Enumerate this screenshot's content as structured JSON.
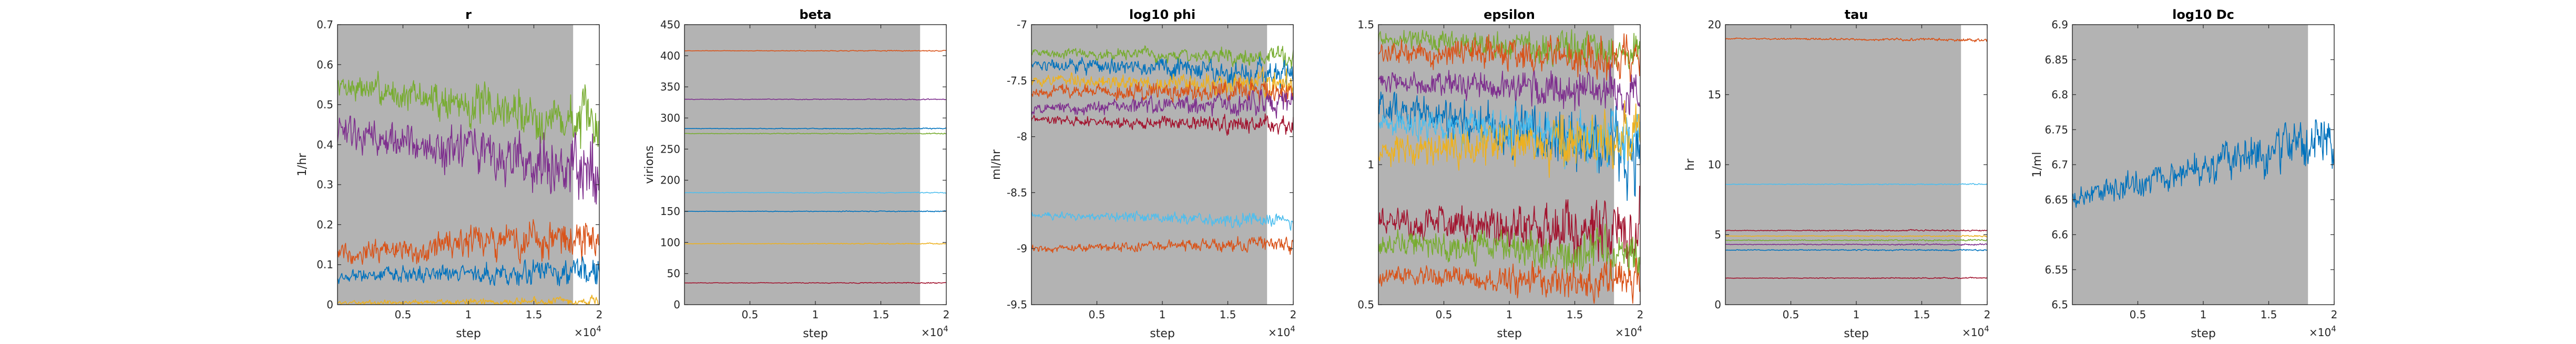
{
  "figure": {
    "burn_in_color": "#b3b3b3",
    "colors": [
      "#0072BD",
      "#D95319",
      "#EDB120",
      "#7E2F8E",
      "#77AC30",
      "#4DBEEE",
      "#A2142F"
    ]
  },
  "chart_data": [
    {
      "type": "line",
      "title": "r",
      "xlabel": "step",
      "ylabel": "1/hr",
      "xlim": [
        0,
        20000
      ],
      "ylim": [
        0,
        0.7
      ],
      "xticks": [
        "0.5",
        "1",
        "1.5",
        "2"
      ],
      "xtick_values": [
        5000,
        10000,
        15000,
        20000
      ],
      "yticks": [
        "0",
        "0.1",
        "0.2",
        "0.3",
        "0.4",
        "0.5",
        "0.6",
        "0.7"
      ],
      "ytick_values": [
        0,
        0.1,
        0.2,
        0.3,
        0.4,
        0.5,
        0.6,
        0.7
      ],
      "x_exponent": "×10",
      "x_exponent_power": "4",
      "burn_in_end": 18000,
      "series": [
        {
          "color": "#77AC30",
          "start": 0.55,
          "end": 0.45,
          "noise": 0.05
        },
        {
          "color": "#7E2F8E",
          "start": 0.43,
          "end": 0.33,
          "noise": 0.06
        },
        {
          "color": "#D95319",
          "start": 0.13,
          "end": 0.17,
          "noise": 0.04
        },
        {
          "color": "#0072BD",
          "start": 0.07,
          "end": 0.08,
          "noise": 0.025
        },
        {
          "color": "#EDB120",
          "start": 0.005,
          "end": 0.01,
          "noise": 0.008
        }
      ]
    },
    {
      "type": "line",
      "title": "beta",
      "xlabel": "step",
      "ylabel": "virions",
      "xlim": [
        0,
        20000
      ],
      "ylim": [
        0,
        450
      ],
      "xticks": [
        "0.5",
        "1",
        "1.5",
        "2"
      ],
      "xtick_values": [
        5000,
        10000,
        15000,
        20000
      ],
      "yticks": [
        "0",
        "50",
        "100",
        "150",
        "200",
        "250",
        "300",
        "350",
        "400",
        "450"
      ],
      "ytick_values": [
        0,
        50,
        100,
        150,
        200,
        250,
        300,
        350,
        400,
        450
      ],
      "x_exponent": "×10",
      "x_exponent_power": "4",
      "burn_in_end": 18000,
      "series": [
        {
          "color": "#D95319",
          "start": 408,
          "end": 408,
          "noise": 0.6
        },
        {
          "color": "#7E2F8E",
          "start": 330,
          "end": 330,
          "noise": 0.6
        },
        {
          "color": "#0072BD",
          "start": 283,
          "end": 283,
          "noise": 0.6
        },
        {
          "color": "#77AC30",
          "start": 275,
          "end": 275,
          "noise": 0.6
        },
        {
          "color": "#4DBEEE",
          "start": 180,
          "end": 180,
          "noise": 0.6
        },
        {
          "color": "#0072BD",
          "start": 150,
          "end": 150,
          "noise": 0.6
        },
        {
          "color": "#EDB120",
          "start": 98,
          "end": 98,
          "noise": 0.6
        },
        {
          "color": "#A2142F",
          "start": 35,
          "end": 35,
          "noise": 0.6
        }
      ]
    },
    {
      "type": "line",
      "title": "log10 phi",
      "xlabel": "step",
      "ylabel": "ml/hr",
      "xlim": [
        0,
        20000
      ],
      "ylim": [
        -9.5,
        -7
      ],
      "xticks": [
        "0.5",
        "1",
        "1.5",
        "2"
      ],
      "xtick_values": [
        5000,
        10000,
        15000,
        20000
      ],
      "yticks": [
        "-9.5",
        "-9",
        "-8.5",
        "-8",
        "-7.5",
        "-7"
      ],
      "ytick_values": [
        -9.5,
        -9,
        -8.5,
        -8,
        -7.5,
        -7
      ],
      "x_exponent": "×10",
      "x_exponent_power": "4",
      "burn_in_end": 18000,
      "series": [
        {
          "color": "#77AC30",
          "start": -7.25,
          "end": -7.3,
          "noise": 0.06
        },
        {
          "color": "#0072BD",
          "start": -7.35,
          "end": -7.45,
          "noise": 0.08
        },
        {
          "color": "#EDB120",
          "start": -7.5,
          "end": -7.55,
          "noise": 0.08
        },
        {
          "color": "#D95319",
          "start": -7.6,
          "end": -7.6,
          "noise": 0.08
        },
        {
          "color": "#7E2F8E",
          "start": -7.75,
          "end": -7.7,
          "noise": 0.08
        },
        {
          "color": "#A2142F",
          "start": -7.85,
          "end": -7.9,
          "noise": 0.06
        },
        {
          "color": "#4DBEEE",
          "start": -8.7,
          "end": -8.75,
          "noise": 0.05
        },
        {
          "color": "#D95319",
          "start": -9.0,
          "end": -8.95,
          "noise": 0.05
        }
      ]
    },
    {
      "type": "line",
      "title": "epsilon",
      "xlabel": "step",
      "ylabel": "",
      "xlim": [
        0,
        20000
      ],
      "ylim": [
        0.5,
        1.5
      ],
      "xticks": [
        "0.5",
        "1",
        "1.5",
        "2"
      ],
      "xtick_values": [
        5000,
        10000,
        15000,
        20000
      ],
      "yticks": [
        "0.5",
        "1",
        "1.5"
      ],
      "ytick_values": [
        0.5,
        1,
        1.5
      ],
      "x_exponent": "×10",
      "x_exponent_power": "4",
      "burn_in_end": 18000,
      "series": [
        {
          "color": "#77AC30",
          "start": 1.45,
          "end": 1.4,
          "noise": 0.05
        },
        {
          "color": "#D95319",
          "start": 1.4,
          "end": 1.38,
          "noise": 0.06
        },
        {
          "color": "#7E2F8E",
          "start": 1.3,
          "end": 1.25,
          "noise": 0.06
        },
        {
          "color": "#0072BD",
          "start": 1.2,
          "end": 1.05,
          "noise": 0.09
        },
        {
          "color": "#4DBEEE",
          "start": 1.15,
          "end": 1.1,
          "noise": 0.07
        },
        {
          "color": "#EDB120",
          "start": 1.05,
          "end": 1.1,
          "noise": 0.08
        },
        {
          "color": "#A2142F",
          "start": 0.8,
          "end": 0.75,
          "noise": 0.08
        },
        {
          "color": "#77AC30",
          "start": 0.72,
          "end": 0.68,
          "noise": 0.06
        },
        {
          "color": "#D95319",
          "start": 0.6,
          "end": 0.58,
          "noise": 0.05
        }
      ]
    },
    {
      "type": "line",
      "title": "tau",
      "xlabel": "step",
      "ylabel": "hr",
      "xlim": [
        0,
        20000
      ],
      "ylim": [
        0,
        20
      ],
      "xticks": [
        "0.5",
        "1",
        "1.5",
        "2"
      ],
      "xtick_values": [
        5000,
        10000,
        15000,
        20000
      ],
      "yticks": [
        "0",
        "5",
        "10",
        "15",
        "20"
      ],
      "ytick_values": [
        0,
        5,
        10,
        15,
        20
      ],
      "x_exponent": "×10",
      "x_exponent_power": "4",
      "burn_in_end": 18000,
      "series": [
        {
          "color": "#D95319",
          "start": 19.0,
          "end": 18.9,
          "noise": 0.08
        },
        {
          "color": "#4DBEEE",
          "start": 8.6,
          "end": 8.6,
          "noise": 0.03
        },
        {
          "color": "#A2142F",
          "start": 5.3,
          "end": 5.3,
          "noise": 0.04
        },
        {
          "color": "#EDB120",
          "start": 4.9,
          "end": 4.9,
          "noise": 0.04
        },
        {
          "color": "#77AC30",
          "start": 4.6,
          "end": 4.6,
          "noise": 0.04
        },
        {
          "color": "#7E2F8E",
          "start": 4.3,
          "end": 4.3,
          "noise": 0.04
        },
        {
          "color": "#0072BD",
          "start": 3.9,
          "end": 3.9,
          "noise": 0.04
        },
        {
          "color": "#A2142F",
          "start": 1.9,
          "end": 1.9,
          "noise": 0.03
        }
      ]
    },
    {
      "type": "line",
      "title": "log10 Dc",
      "xlabel": "step",
      "ylabel": "1/ml",
      "xlim": [
        0,
        20000
      ],
      "ylim": [
        6.5,
        6.9
      ],
      "xticks": [
        "0.5",
        "1",
        "1.5",
        "2"
      ],
      "xtick_values": [
        5000,
        10000,
        15000,
        20000
      ],
      "yticks": [
        "6.5",
        "6.55",
        "6.6",
        "6.65",
        "6.7",
        "6.75",
        "6.8",
        "6.85",
        "6.9"
      ],
      "ytick_values": [
        6.5,
        6.55,
        6.6,
        6.65,
        6.7,
        6.75,
        6.8,
        6.85,
        6.9
      ],
      "x_exponent": "×10",
      "x_exponent_power": "4",
      "burn_in_end": 18000,
      "series": [
        {
          "color": "#0072BD",
          "start": 6.65,
          "end": 6.74,
          "noise": 0.025
        }
      ]
    }
  ]
}
